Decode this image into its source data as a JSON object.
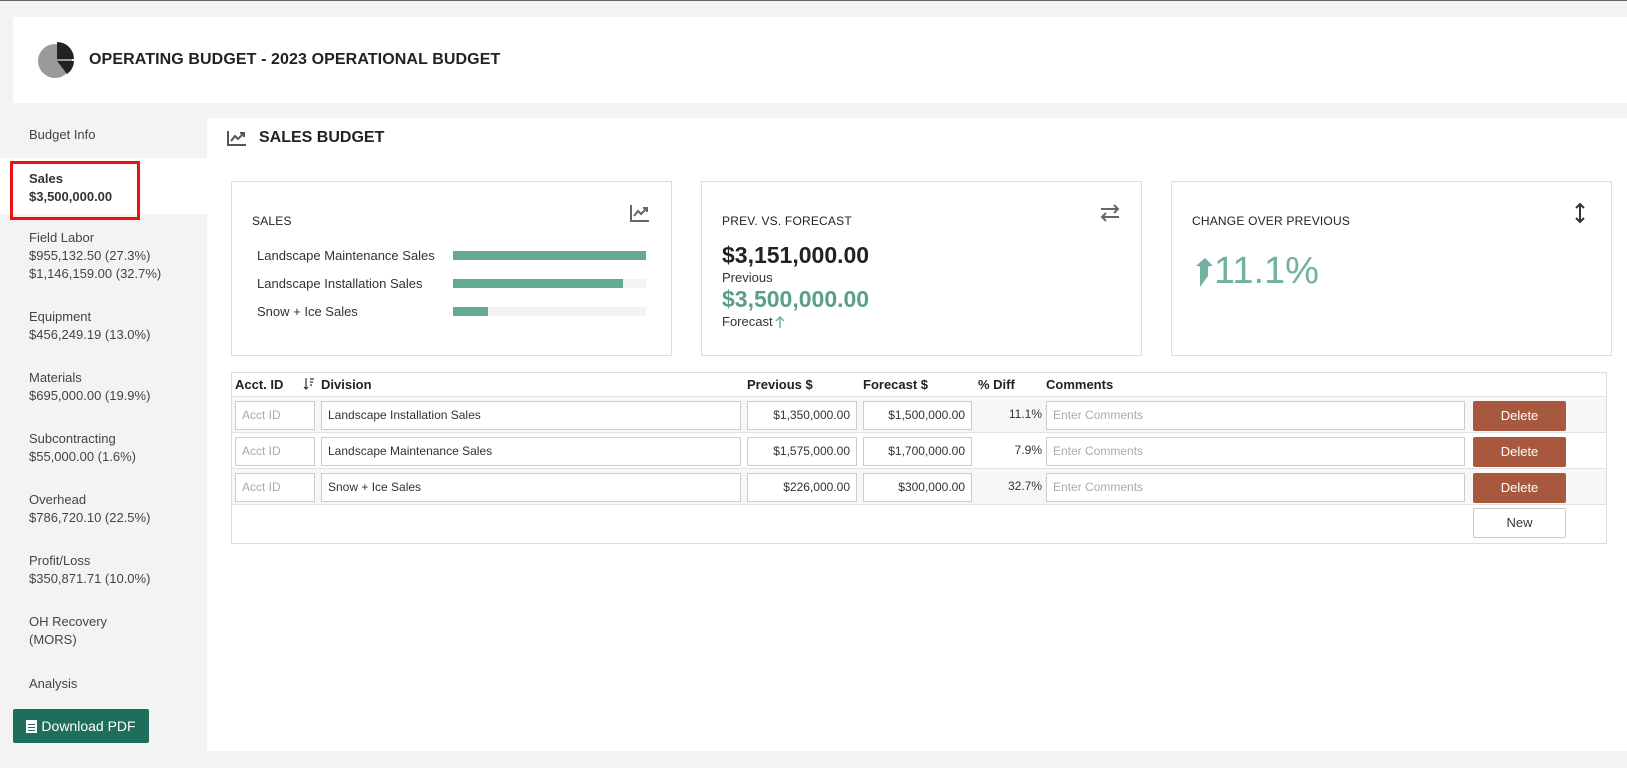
{
  "header": {
    "title": "OPERATING BUDGET - 2023 OPERATIONAL BUDGET",
    "icon": "pie-chart-icon"
  },
  "sidebar": {
    "items": [
      {
        "label": "Budget Info",
        "value": "",
        "extra": ""
      },
      {
        "label": "Sales",
        "value": "$3,500,000.00",
        "extra": ""
      },
      {
        "label": "Field Labor",
        "value": "$955,132.50 (27.3%)",
        "extra": "$1,146,159.00 (32.7%)"
      },
      {
        "label": "Equipment",
        "value": "$456,249.19 (13.0%)",
        "extra": ""
      },
      {
        "label": "Materials",
        "value": "$695,000.00 (19.9%)",
        "extra": ""
      },
      {
        "label": "Subcontracting",
        "value": "$55,000.00 (1.6%)",
        "extra": ""
      },
      {
        "label": "Overhead",
        "value": "$786,720.10 (22.5%)",
        "extra": ""
      },
      {
        "label": "Profit/Loss",
        "value": "$350,871.71 (10.0%)",
        "extra": ""
      },
      {
        "label": "OH Recovery",
        "value": "(MORS)",
        "extra": ""
      },
      {
        "label": "Analysis",
        "value": "",
        "extra": ""
      }
    ],
    "download_label": "Download PDF"
  },
  "main": {
    "title": "SALES BUDGET",
    "cards": {
      "sales": {
        "title": "SALES",
        "bars": [
          {
            "label": "Landscape Maintenance Sales",
            "fraction": 1.0
          },
          {
            "label": "Landscape Installation Sales",
            "fraction": 0.88
          },
          {
            "label": "Snow + Ice Sales",
            "fraction": 0.18
          }
        ]
      },
      "prev_vs_forecast": {
        "title": "PREV. VS. FORECAST",
        "previous_value": "$3,151,000.00",
        "previous_label": "Previous",
        "forecast_value": "$3,500,000.00",
        "forecast_label": "Forecast"
      },
      "change": {
        "title": "CHANGE OVER PREVIOUS",
        "value": "11.1%"
      }
    },
    "table": {
      "headers": {
        "acct": "Acct. ID",
        "division": "Division",
        "previous": "Previous $",
        "forecast": "Forecast $",
        "diff": "% Diff",
        "comments": "Comments"
      },
      "rows": [
        {
          "acct_placeholder": "Acct ID",
          "division": "Landscape Installation Sales",
          "previous": "$1,350,000.00",
          "forecast": "$1,500,000.00",
          "diff": "11.1%",
          "comments_placeholder": "Enter Comments",
          "delete_label": "Delete"
        },
        {
          "acct_placeholder": "Acct ID",
          "division": "Landscape Maintenance Sales",
          "previous": "$1,575,000.00",
          "forecast": "$1,700,000.00",
          "diff": "7.9%",
          "comments_placeholder": "Enter Comments",
          "delete_label": "Delete"
        },
        {
          "acct_placeholder": "Acct ID",
          "division": "Snow + Ice Sales",
          "previous": "$226,000.00",
          "forecast": "$300,000.00",
          "diff": "32.7%",
          "comments_placeholder": "Enter Comments",
          "delete_label": "Delete"
        }
      ],
      "new_label": "New"
    }
  },
  "colors": {
    "accent": "#1f6e5c",
    "bar": "#64a896",
    "forecast": "#5a9e8b",
    "delete": "#a8583f",
    "highlight": "#ee1111"
  }
}
